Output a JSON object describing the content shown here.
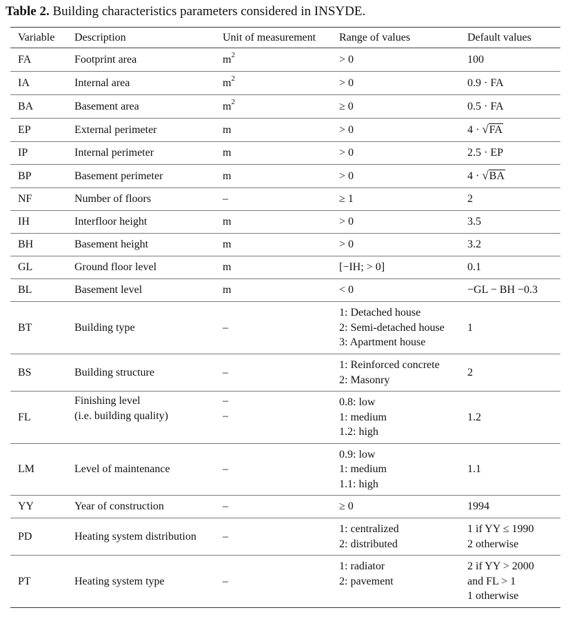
{
  "caption": {
    "label": "Table 2.",
    "text": "Building characteristics parameters considered in INSYDE."
  },
  "columns": [
    "Variable",
    "Description",
    "Unit of measurement",
    "Range of values",
    "Default values"
  ],
  "rows": [
    {
      "var": "FA",
      "desc": [
        "Footprint area"
      ],
      "unit": [
        "m",
        "2"
      ],
      "range": [
        "> 0"
      ],
      "default": [
        "100"
      ],
      "h": 34
    },
    {
      "var": "IA",
      "desc": [
        "Internal area"
      ],
      "unit": [
        "m",
        "2"
      ],
      "range": [
        "> 0"
      ],
      "default": [
        "0.9 · FA"
      ],
      "h": 34
    },
    {
      "var": "BA",
      "desc": [
        "Basement area"
      ],
      "unit": [
        "m",
        "2"
      ],
      "range": [
        "≥ 0"
      ],
      "default": [
        "0.5 · FA"
      ],
      "h": 34
    },
    {
      "var": "EP",
      "desc": [
        "External perimeter"
      ],
      "unit": [
        "m"
      ],
      "range": [
        "> 0"
      ],
      "default_sqrt": {
        "prefix": "4 · ",
        "radicand": "FA"
      },
      "h": 34
    },
    {
      "var": "IP",
      "desc": [
        "Internal perimeter"
      ],
      "unit": [
        "m"
      ],
      "range": [
        "> 0"
      ],
      "default": [
        "2.5 · EP"
      ],
      "h": 33
    },
    {
      "var": "BP",
      "desc": [
        "Basement perimeter"
      ],
      "unit": [
        "m"
      ],
      "range": [
        "> 0"
      ],
      "default_sqrt": {
        "prefix": "4 · ",
        "radicand": "BA"
      },
      "h": 34
    },
    {
      "var": "NF",
      "desc": [
        "Number of floors"
      ],
      "unit": [
        "–"
      ],
      "range": [
        "≥ 1"
      ],
      "default": [
        "2"
      ],
      "h": 33
    },
    {
      "var": "IH",
      "desc": [
        "Interfloor height"
      ],
      "unit": [
        "m"
      ],
      "range": [
        "> 0"
      ],
      "default": [
        "3.5"
      ],
      "h": 33
    },
    {
      "var": "BH",
      "desc": [
        "Basement height"
      ],
      "unit": [
        "m"
      ],
      "range": [
        "> 0"
      ],
      "default": [
        "3.2"
      ],
      "h": 33
    },
    {
      "var": "GL",
      "desc": [
        "Ground floor level"
      ],
      "unit": [
        "m"
      ],
      "range": [
        "[−IH; > 0]"
      ],
      "default": [
        "0.1"
      ],
      "h": 33
    },
    {
      "var": "BL",
      "desc": [
        "Basement level"
      ],
      "unit": [
        "m"
      ],
      "range": [
        "< 0"
      ],
      "default": [
        "−GL − BH −0.3"
      ],
      "h": 33
    },
    {
      "var": "BT",
      "desc": [
        "Building type"
      ],
      "unit": [
        "–"
      ],
      "range": [
        "1: Detached house",
        "2: Semi-detached house",
        "3: Apartment house"
      ],
      "default": [
        "1"
      ],
      "h": 76
    },
    {
      "var": "BS",
      "desc": [
        "Building structure"
      ],
      "unit": [
        "–"
      ],
      "range": [
        "1: Reinforced concrete",
        "2: Masonry"
      ],
      "default": [
        "2"
      ],
      "h": 54
    },
    {
      "var": "FL",
      "desc": [
        "Finishing level",
        "(i.e. building quality)"
      ],
      "unit": [
        "–",
        "–"
      ],
      "range": [
        "0.8: low",
        "1: medium",
        "1.2: high"
      ],
      "default": [
        "1.2"
      ],
      "h": 76,
      "top": true
    },
    {
      "var": "LM",
      "desc": [
        "Level of maintenance"
      ],
      "unit": [
        "–"
      ],
      "range": [
        "0.9: low",
        "1: medium",
        "1.1: high"
      ],
      "default": [
        "1.1"
      ],
      "h": 75
    },
    {
      "var": "YY",
      "desc": [
        "Year of construction"
      ],
      "unit": [
        "–"
      ],
      "range": [
        "≥ 0"
      ],
      "default": [
        "1994"
      ],
      "h": 33
    },
    {
      "var": "PD",
      "desc": [
        "Heating system distribution"
      ],
      "unit": [
        "–"
      ],
      "range": [
        "1: centralized",
        "2: distributed"
      ],
      "default": [
        "1 if YY ≤ 1990",
        "2 otherwise"
      ],
      "h": 54
    },
    {
      "var": "PT",
      "desc": [
        "Heating system type"
      ],
      "unit": [
        "–"
      ],
      "range": [
        "1: radiator",
        "2: pavement"
      ],
      "default": [
        "2 if YY > 2000",
        "and FL > 1",
        "1 otherwise"
      ],
      "h": 76,
      "rangeTop": true
    }
  ]
}
